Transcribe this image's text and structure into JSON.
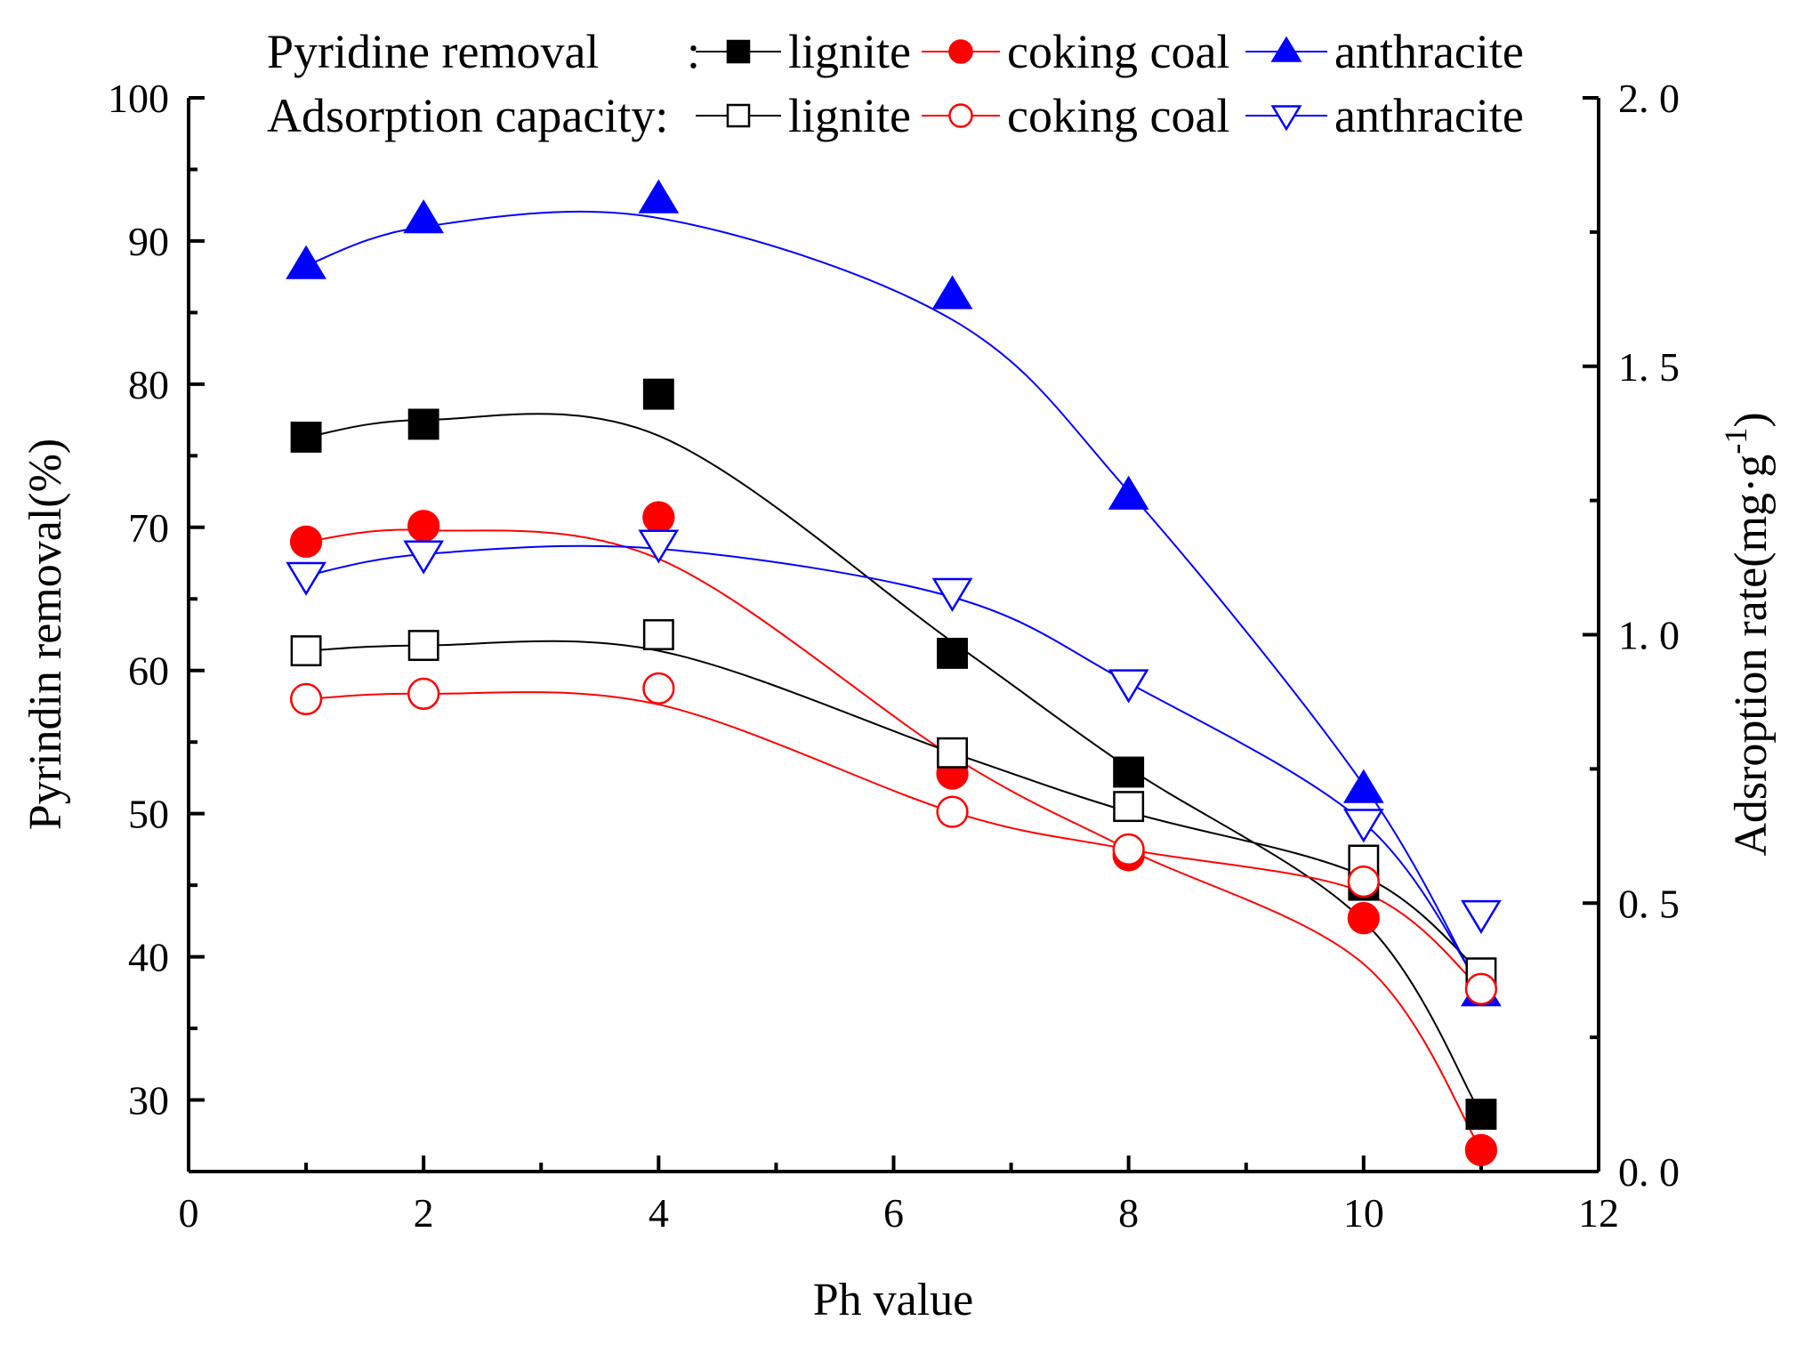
{
  "chart_data": {
    "type": "scatter",
    "xlabel": "Ph value",
    "ylabel_left": "Pyrindin removal(%)",
    "ylabel_right": "Adsroption rate(mg·g",
    "ylabel_right_superscript": "-1",
    "ylabel_right_close": ")",
    "xlim": [
      0,
      12
    ],
    "ylim_left": [
      25,
      100
    ],
    "ylim_right": [
      0.0,
      2.0
    ],
    "x_ticks": [
      "0",
      "2",
      "4",
      "6",
      "8",
      "10",
      "12"
    ],
    "y_left_ticks": [
      "30",
      "40",
      "50",
      "60",
      "70",
      "80",
      "90",
      "100"
    ],
    "y_right_ticks": [
      "0. 0",
      "0. 5",
      "1. 0",
      "1. 5",
      "2. 0"
    ],
    "legend": {
      "row1_title": "Pyridine removal",
      "row1_sep": ":",
      "row2_title": "Adsorption capacity:",
      "labels": [
        "lignite",
        "coking coal",
        "anthracite"
      ]
    },
    "x": [
      1,
      2,
      4,
      6.5,
      8,
      10,
      11
    ],
    "series": [
      {
        "name": "Pyridine removal - lignite",
        "axis": "left",
        "marker": "square",
        "filled": true,
        "color": "#000000",
        "values": [
          76.3,
          77.2,
          79.3,
          61.2,
          52.9,
          45.0,
          29.0
        ],
        "fit": [
          76.3,
          77.5,
          76.4,
          62.0,
          53.2,
          42.5,
          29.0
        ]
      },
      {
        "name": "Pyridine removal - coking coal",
        "axis": "left",
        "marker": "circle",
        "filled": true,
        "color": "#ff0000",
        "values": [
          69.0,
          70.1,
          70.7,
          52.8,
          47.1,
          42.7,
          26.5
        ],
        "fit": [
          69.0,
          69.8,
          67.8,
          54.0,
          47.5,
          39.5,
          26.5
        ]
      },
      {
        "name": "Pyridine removal - anthracite",
        "axis": "left",
        "marker": "triangle-up",
        "filled": true,
        "color": "#0000ff",
        "values": [
          88.3,
          91.5,
          92.9,
          86.2,
          72.2,
          51.7,
          37.5
        ],
        "fit": [
          88.3,
          91.0,
          91.6,
          84.5,
          72.5,
          52.0,
          37.5
        ]
      },
      {
        "name": "Adsorption capacity - lignite",
        "axis": "right",
        "marker": "square",
        "filled": false,
        "color": "#000000",
        "values": [
          0.97,
          0.98,
          1.0,
          0.78,
          0.68,
          0.58,
          0.37
        ],
        "fit": [
          0.97,
          0.98,
          0.97,
          0.78,
          0.67,
          0.55,
          0.37
        ]
      },
      {
        "name": "Adsorption capacity - coking coal",
        "axis": "right",
        "marker": "circle",
        "filled": false,
        "color": "#ff0000",
        "values": [
          0.88,
          0.89,
          0.9,
          0.67,
          0.6,
          0.54,
          0.34
        ],
        "fit": [
          0.88,
          0.89,
          0.87,
          0.67,
          0.6,
          0.52,
          0.34
        ]
      },
      {
        "name": "Adsorption capacity - anthracite",
        "axis": "right",
        "marker": "triangle-down",
        "filled": false,
        "color": "#0000ff",
        "values": [
          1.11,
          1.15,
          1.17,
          1.08,
          0.91,
          0.65,
          0.48
        ],
        "fit": [
          1.11,
          1.15,
          1.16,
          1.07,
          0.91,
          0.65,
          0.34
        ]
      }
    ]
  }
}
